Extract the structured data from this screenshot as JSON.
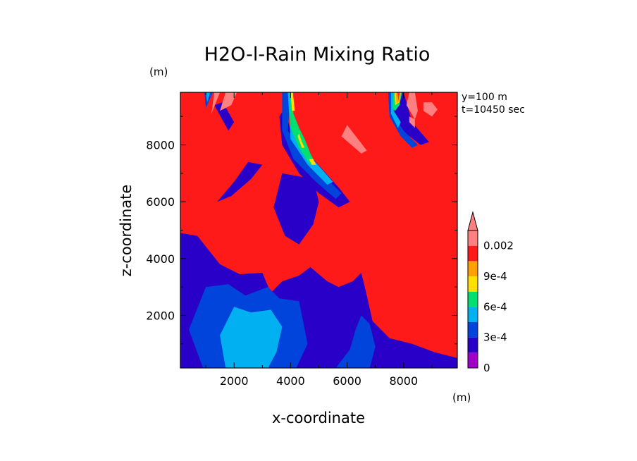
{
  "chart_data": {
    "type": "heatmap",
    "title": "H2O-l-Rain Mixing Ratio",
    "xlabel": "x-coordinate",
    "ylabel": "z-coordinate",
    "x_unit": "(m)",
    "z_unit": "(m)",
    "xlim": [
      100,
      9900
    ],
    "ylim": [
      150,
      9850
    ],
    "x_ticks": [
      2000,
      4000,
      6000,
      8000
    ],
    "y_ticks": [
      2000,
      4000,
      6000,
      8000
    ],
    "x_tick_labels": [
      "2000",
      "4000",
      "6000",
      "8000"
    ],
    "y_tick_labels": [
      "2000",
      "4000",
      "6000",
      "8000"
    ],
    "annotations": [
      "y=100 m",
      "t=10450 sec"
    ],
    "colorbar": {
      "levels": [
        0,
        0.00015,
        0.0003,
        0.00045,
        0.0006,
        0.00075,
        0.0009,
        0.00105,
        0.002
      ],
      "tick_labels": [
        "0",
        "3e-4",
        "6e-4",
        "9e-4",
        "0.002"
      ],
      "tick_values": [
        0,
        0.0003,
        0.0006,
        0.0009,
        0.002
      ],
      "colors": [
        "#a000c8",
        "#2800c8",
        "#0044dc",
        "#00b0f0",
        "#00e070",
        "#ffe000",
        "#ffa000",
        "#ff1a1a",
        "#ff8080"
      ],
      "extend": "max"
    },
    "background_color": "#ff1a1a",
    "regions": [
      {
        "level": 1,
        "points": [
          [
            100,
            150
          ],
          [
            100,
            4900
          ],
          [
            700,
            4800
          ],
          [
            1500,
            3800
          ],
          [
            2200,
            3450
          ],
          [
            3000,
            3500
          ],
          [
            3300,
            2800
          ],
          [
            3700,
            3200
          ],
          [
            4300,
            3400
          ],
          [
            4700,
            3700
          ],
          [
            5300,
            3200
          ],
          [
            5700,
            3000
          ],
          [
            6200,
            3200
          ],
          [
            6500,
            3500
          ],
          [
            6650,
            2900
          ],
          [
            6900,
            1800
          ],
          [
            7500,
            1200
          ],
          [
            8300,
            1000
          ],
          [
            9100,
            700
          ],
          [
            9900,
            500
          ],
          [
            9900,
            150
          ]
        ]
      },
      {
        "level": 2,
        "points": [
          [
            900,
            150
          ],
          [
            400,
            1500
          ],
          [
            1000,
            3000
          ],
          [
            1800,
            3100
          ],
          [
            2400,
            2700
          ],
          [
            3200,
            3000
          ],
          [
            3600,
            2600
          ],
          [
            4300,
            2500
          ],
          [
            4600,
            1000
          ],
          [
            4200,
            150
          ]
        ]
      },
      {
        "level": 2,
        "points": [
          [
            5600,
            150
          ],
          [
            6100,
            800
          ],
          [
            6300,
            1500
          ],
          [
            6500,
            2000
          ],
          [
            6800,
            1700
          ],
          [
            7000,
            900
          ],
          [
            6800,
            150
          ]
        ]
      },
      {
        "level": 3,
        "points": [
          [
            1700,
            150
          ],
          [
            1500,
            1300
          ],
          [
            2000,
            2300
          ],
          [
            2600,
            2100
          ],
          [
            3300,
            2200
          ],
          [
            3700,
            1600
          ],
          [
            3500,
            700
          ],
          [
            3200,
            150
          ]
        ]
      },
      {
        "level": 1,
        "points": [
          [
            3700,
            7000
          ],
          [
            3400,
            5800
          ],
          [
            3800,
            4800
          ],
          [
            4300,
            4500
          ],
          [
            4800,
            5200
          ],
          [
            5000,
            6000
          ],
          [
            4800,
            6800
          ]
        ]
      },
      {
        "level": 1,
        "points": [
          [
            2500,
            7400
          ],
          [
            2000,
            6700
          ],
          [
            1400,
            6000
          ],
          [
            1900,
            6200
          ],
          [
            2600,
            6800
          ],
          [
            3000,
            7300
          ]
        ]
      },
      {
        "level": 1,
        "points": [
          [
            1300,
            9400
          ],
          [
            1800,
            8500
          ],
          [
            2000,
            8800
          ],
          [
            1600,
            9500
          ]
        ]
      },
      {
        "level": 1,
        "points": [
          [
            3800,
            9300
          ],
          [
            4000,
            8500
          ],
          [
            4800,
            7500
          ],
          [
            5700,
            6500
          ],
          [
            6100,
            6000
          ],
          [
            5700,
            5800
          ],
          [
            5000,
            6300
          ],
          [
            4300,
            7000
          ],
          [
            3700,
            8000
          ],
          [
            3600,
            9000
          ]
        ]
      },
      {
        "level": 1,
        "points": [
          [
            7500,
            9850
          ],
          [
            7700,
            8700
          ],
          [
            8600,
            8000
          ],
          [
            8900,
            8100
          ],
          [
            8300,
            8800
          ],
          [
            8000,
            9850
          ]
        ]
      },
      {
        "level": 2,
        "points": [
          [
            4000,
            9850
          ],
          [
            3900,
            8500
          ],
          [
            4800,
            7300
          ],
          [
            5800,
            6300
          ],
          [
            5600,
            6100
          ],
          [
            4900,
            6700
          ],
          [
            4100,
            7500
          ],
          [
            3700,
            8500
          ],
          [
            3700,
            9850
          ]
        ]
      },
      {
        "level": 3,
        "points": [
          [
            4100,
            9850
          ],
          [
            4050,
            8600
          ],
          [
            4700,
            7600
          ],
          [
            5500,
            6700
          ],
          [
            5300,
            6600
          ],
          [
            4600,
            7300
          ],
          [
            4000,
            8200
          ],
          [
            3900,
            9850
          ]
        ]
      },
      {
        "level": 2,
        "points": [
          [
            7600,
            9850
          ],
          [
            7600,
            9100
          ],
          [
            8000,
            8500
          ],
          [
            8500,
            8000
          ],
          [
            8300,
            7900
          ],
          [
            7900,
            8300
          ],
          [
            7500,
            9000
          ],
          [
            7450,
            9850
          ]
        ]
      },
      {
        "level": 3,
        "points": [
          [
            7700,
            9850
          ],
          [
            7650,
            9200
          ],
          [
            7900,
            8800
          ],
          [
            7800,
            8600
          ],
          [
            7550,
            9100
          ],
          [
            7550,
            9850
          ]
        ]
      },
      {
        "level": 2,
        "points": [
          [
            950,
            9850
          ],
          [
            1000,
            9300
          ],
          [
            1250,
            9850
          ]
        ]
      },
      {
        "level": 3,
        "points": [
          [
            1000,
            9850
          ],
          [
            1050,
            9500
          ],
          [
            1150,
            9850
          ]
        ]
      },
      {
        "level": 4,
        "points": [
          [
            4050,
            9850
          ],
          [
            4100,
            9100
          ],
          [
            4300,
            8600
          ],
          [
            4500,
            8200
          ],
          [
            4700,
            7700
          ],
          [
            4900,
            7300
          ],
          [
            4700,
            7300
          ],
          [
            4300,
            7900
          ],
          [
            4000,
            8600
          ],
          [
            3950,
            9850
          ]
        ]
      },
      {
        "level": 5,
        "points": [
          [
            4080,
            9850
          ],
          [
            4150,
            9200
          ],
          [
            4050,
            9200
          ],
          [
            4000,
            9850
          ]
        ]
      },
      {
        "level": 5,
        "points": [
          [
            4300,
            8400
          ],
          [
            4400,
            8100
          ],
          [
            4500,
            7900
          ],
          [
            4400,
            7900
          ],
          [
            4250,
            8300
          ]
        ]
      },
      {
        "level": 5,
        "points": [
          [
            4800,
            7500
          ],
          [
            4900,
            7300
          ],
          [
            4750,
            7300
          ],
          [
            4650,
            7500
          ]
        ]
      },
      {
        "level": 4,
        "points": [
          [
            7650,
            9850
          ],
          [
            7600,
            9300
          ],
          [
            7700,
            9200
          ],
          [
            7850,
            9400
          ],
          [
            7950,
            9850
          ]
        ]
      },
      {
        "level": 5,
        "points": [
          [
            7680,
            9850
          ],
          [
            7700,
            9400
          ],
          [
            7850,
            9500
          ],
          [
            7900,
            9850
          ]
        ]
      },
      {
        "level": 6,
        "points": [
          [
            7720,
            9850
          ],
          [
            7750,
            9450
          ],
          [
            7850,
            9550
          ],
          [
            7880,
            9850
          ]
        ]
      },
      {
        "level": 7,
        "points": [
          [
            7780,
            9850
          ],
          [
            7820,
            9550
          ],
          [
            7860,
            9850
          ]
        ]
      },
      {
        "level": 8,
        "points": [
          [
            1300,
            9850
          ],
          [
            1200,
            9100
          ],
          [
            1400,
            9600
          ],
          [
            1500,
            9850
          ]
        ]
      },
      {
        "level": 8,
        "points": [
          [
            1700,
            9850
          ],
          [
            1500,
            9200
          ],
          [
            1900,
            9400
          ],
          [
            2100,
            9850
          ]
        ]
      },
      {
        "level": 8,
        "points": [
          [
            6000,
            8700
          ],
          [
            5800,
            8300
          ],
          [
            6500,
            7700
          ],
          [
            6700,
            7800
          ]
        ]
      },
      {
        "level": 8,
        "points": [
          [
            8200,
            9850
          ],
          [
            8100,
            9400
          ],
          [
            8400,
            8900
          ],
          [
            8500,
            9200
          ],
          [
            8400,
            9850
          ]
        ]
      },
      {
        "level": 8,
        "points": [
          [
            8700,
            9500
          ],
          [
            8700,
            9200
          ],
          [
            9000,
            9000
          ],
          [
            9200,
            9250
          ],
          [
            9000,
            9500
          ]
        ]
      },
      {
        "level": 8,
        "points": [
          [
            8200,
            9000
          ],
          [
            8200,
            8800
          ],
          [
            8400,
            8600
          ],
          [
            8400,
            8900
          ]
        ]
      }
    ]
  }
}
